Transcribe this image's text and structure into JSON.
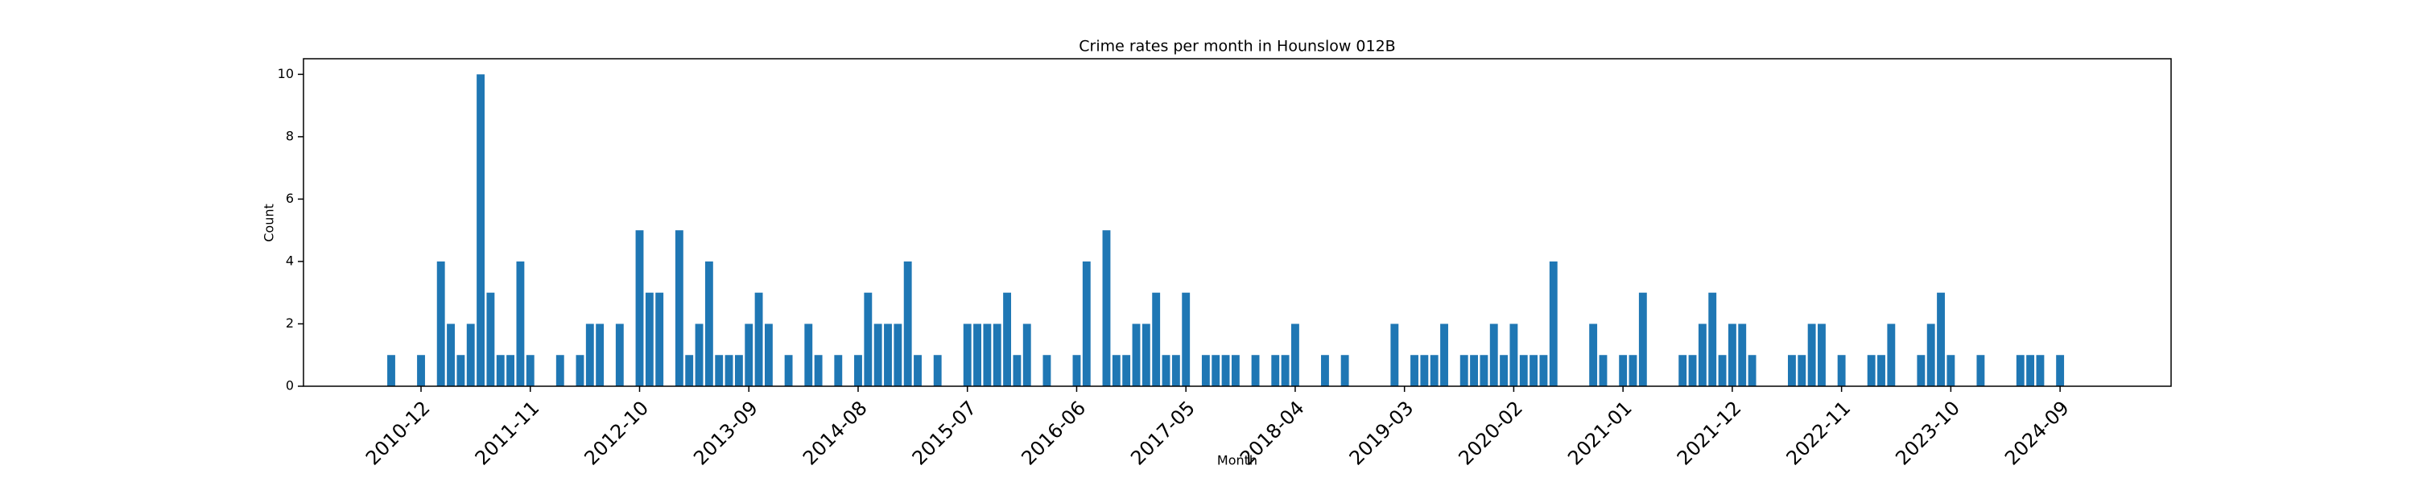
{
  "chart_data": {
    "type": "bar",
    "title": "Crime rates per month in Hounslow 012B",
    "x_label": "Month",
    "y_label": "Count",
    "color": "#1f77b4",
    "categories": [
      null,
      null,
      null,
      "2010-12",
      null,
      null,
      null,
      null,
      null,
      null,
      null,
      null,
      null,
      null,
      "2011-11",
      null,
      null,
      null,
      null,
      null,
      null,
      null,
      null,
      null,
      null,
      "2012-10",
      null,
      null,
      null,
      null,
      null,
      null,
      null,
      null,
      null,
      null,
      "2013-09",
      null,
      null,
      null,
      null,
      null,
      null,
      null,
      null,
      null,
      null,
      "2014-08",
      null,
      null,
      null,
      null,
      null,
      null,
      null,
      null,
      null,
      null,
      "2015-07",
      null,
      null,
      null,
      null,
      null,
      null,
      null,
      null,
      null,
      null,
      "2016-06",
      null,
      null,
      null,
      null,
      null,
      null,
      null,
      null,
      null,
      null,
      "2017-05",
      null,
      null,
      null,
      null,
      null,
      null,
      null,
      null,
      null,
      null,
      "2018-04",
      null,
      null,
      null,
      null,
      null,
      null,
      null,
      null,
      null,
      null,
      "2019-03",
      null,
      null,
      null,
      null,
      null,
      null,
      null,
      null,
      null,
      null,
      "2020-02",
      null,
      null,
      null,
      null,
      null,
      null,
      null,
      null,
      null,
      null,
      "2021-01",
      null,
      null,
      null,
      null,
      null,
      null,
      null,
      null,
      null,
      null,
      "2021-12",
      null,
      null,
      null,
      null,
      null,
      null,
      null,
      null,
      null,
      null,
      "2022-11",
      null,
      null,
      null,
      null,
      null,
      null,
      null,
      null,
      null,
      null,
      "2023-10",
      null,
      null,
      null,
      null,
      null,
      null,
      null,
      null,
      null,
      null,
      "2024-09"
    ],
    "values": [
      1,
      0,
      0,
      1,
      0,
      4,
      2,
      1,
      2,
      10,
      3,
      1,
      1,
      4,
      1,
      0,
      0,
      1,
      0,
      1,
      2,
      2,
      0,
      2,
      0,
      5,
      3,
      3,
      0,
      5,
      1,
      2,
      4,
      1,
      1,
      1,
      2,
      3,
      2,
      0,
      1,
      0,
      2,
      1,
      0,
      1,
      0,
      1,
      3,
      2,
      2,
      2,
      4,
      1,
      0,
      1,
      0,
      0,
      2,
      2,
      2,
      2,
      3,
      1,
      2,
      0,
      1,
      0,
      0,
      1,
      4,
      0,
      5,
      1,
      1,
      2,
      2,
      3,
      1,
      1,
      3,
      0,
      1,
      1,
      1,
      1,
      0,
      1,
      0,
      1,
      1,
      2,
      0,
      0,
      1,
      0,
      1,
      0,
      0,
      0,
      0,
      2,
      0,
      1,
      1,
      1,
      2,
      0,
      1,
      1,
      1,
      2,
      1,
      2,
      1,
      1,
      1,
      4,
      0,
      0,
      0,
      2,
      1,
      0,
      1,
      1,
      3,
      0,
      0,
      0,
      1,
      1,
      2,
      3,
      1,
      2,
      2,
      1,
      0,
      0,
      0,
      1,
      1,
      2,
      2,
      0,
      1,
      0,
      0,
      1,
      1,
      2,
      0,
      0,
      1,
      2,
      3,
      1,
      0,
      0,
      1,
      0,
      0,
      0,
      1,
      1,
      1,
      0,
      1
    ],
    "ylim": [
      0,
      10.5
    ],
    "yticks": [
      0,
      2,
      4,
      6,
      8,
      10
    ]
  }
}
